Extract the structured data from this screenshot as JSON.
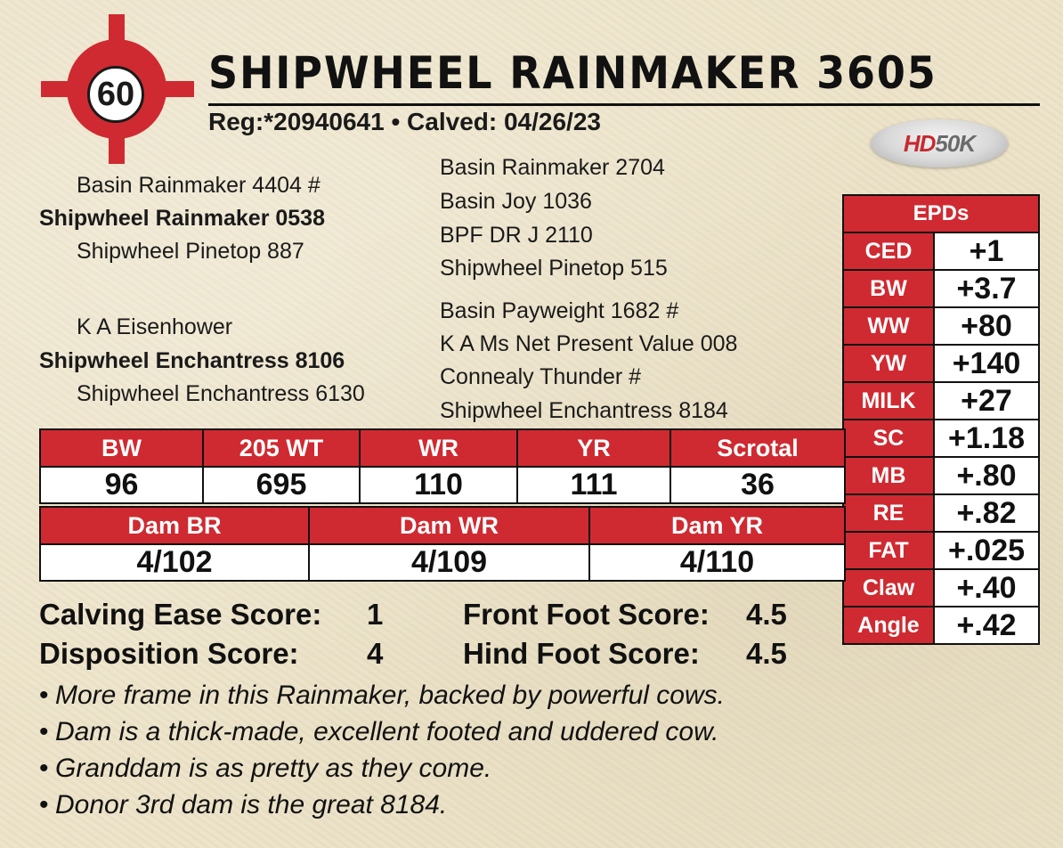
{
  "lot": {
    "number": "60"
  },
  "header": {
    "name": "SHIPWHEEL RAINMAKER 3605",
    "reg_line": "Reg:*20940641 • Calved: 04/26/23"
  },
  "badge": {
    "hd": "HD",
    "k": "50K"
  },
  "pedigree": {
    "sire": "Shipwheel Rainmaker 0538",
    "sire_sire": "Basin Rainmaker 4404 #",
    "sire_dam": "Shipwheel Pinetop 887",
    "dam": "Shipwheel Enchantress 8106",
    "dam_sire": "K A Eisenhower",
    "dam_dam": "Shipwheel Enchantress 6130",
    "ancestors": [
      "Basin Rainmaker 2704",
      "Basin Joy 1036",
      "BPF DR J 2110",
      "Shipwheel Pinetop 515",
      "Basin Payweight 1682 #",
      "K A Ms Net Present Value 008",
      "Connealy Thunder #",
      "Shipwheel Enchantress 8184"
    ]
  },
  "epds": {
    "title": "EPDs",
    "rows": [
      {
        "label": "CED",
        "value": "+1"
      },
      {
        "label": "BW",
        "value": "+3.7"
      },
      {
        "label": "WW",
        "value": "+80"
      },
      {
        "label": "YW",
        "value": "+140"
      },
      {
        "label": "MILK",
        "value": "+27"
      },
      {
        "label": "SC",
        "value": "+1.18"
      },
      {
        "label": "MB",
        "value": "+.80"
      },
      {
        "label": "RE",
        "value": "+.82"
      },
      {
        "label": "FAT",
        "value": "+.025"
      },
      {
        "label": "Claw",
        "value": "+.40"
      },
      {
        "label": "Angle",
        "value": "+.42"
      }
    ]
  },
  "performance": {
    "headers": [
      "BW",
      "205 WT",
      "WR",
      "YR",
      "Scrotal"
    ],
    "values": [
      "96",
      "695",
      "110",
      "111",
      "36"
    ]
  },
  "dam_ratios": {
    "headers": [
      "Dam BR",
      "Dam WR",
      "Dam YR"
    ],
    "values": [
      "4/102",
      "4/109",
      "4/110"
    ]
  },
  "scores": {
    "calving_ease_label": "Calving Ease Score:",
    "calving_ease": "1",
    "disposition_label": "Disposition Score:",
    "disposition": "4",
    "front_foot_label": "Front Foot Score:",
    "front_foot": "4.5",
    "hind_foot_label": "Hind Foot Score:",
    "hind_foot": "4.5"
  },
  "notes": [
    "More frame in this Rainmaker, backed by powerful cows.",
    "Dam is a thick-made, excellent footed and uddered cow.",
    "Granddam is as pretty as they come.",
    "Donor 3rd dam is the great 8184."
  ],
  "colors": {
    "accent_red": "#cf2a31",
    "background": "#ece3c8"
  }
}
